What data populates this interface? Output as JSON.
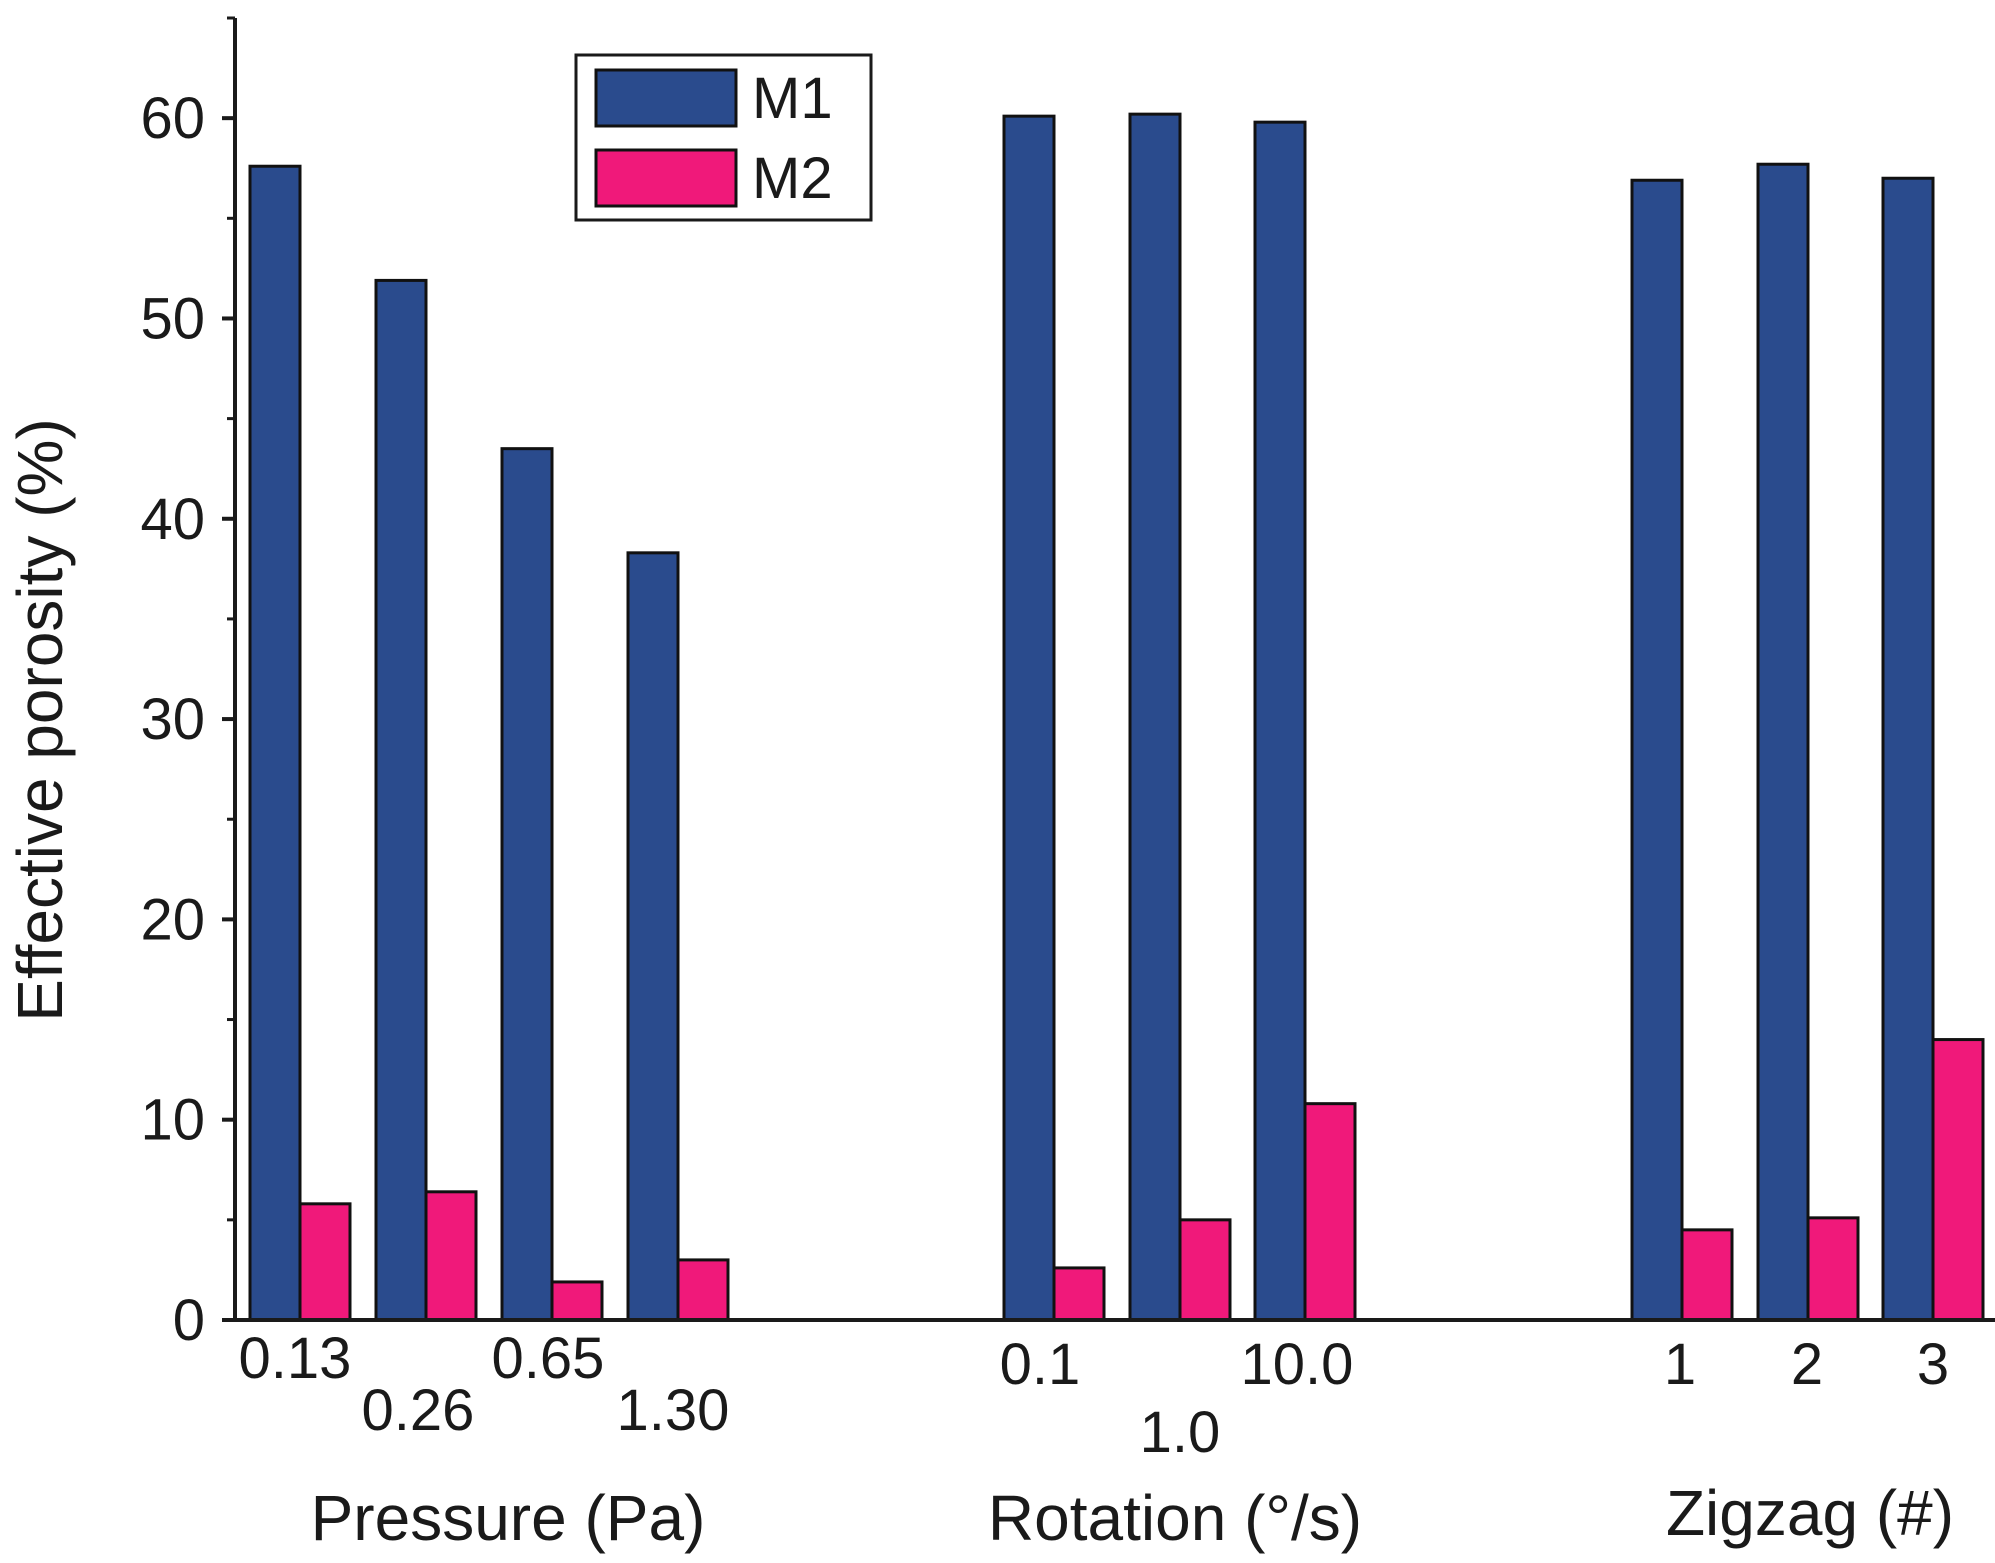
{
  "chart_data": {
    "type": "bar",
    "ylabel": "Effective porosity (%)",
    "ylim": [
      0,
      65
    ],
    "yticks": [
      "0",
      "10",
      "20",
      "30",
      "40",
      "50",
      "60"
    ],
    "legend_position": "top-left",
    "colors": {
      "M1": "#2a4b8d",
      "M2": "#f0197a"
    },
    "series": [
      {
        "name": "M1",
        "values": [
          57.6,
          51.9,
          43.5,
          38.3,
          60.1,
          60.2,
          59.8,
          56.9,
          57.7,
          57.0
        ]
      },
      {
        "name": "M2",
        "values": [
          5.8,
          6.4,
          1.9,
          3.0,
          2.6,
          5.0,
          10.8,
          4.5,
          5.1,
          14.0
        ]
      }
    ],
    "categories": [
      "0.13",
      "0.26",
      "0.65",
      "1.30",
      "0.1",
      "1.0",
      "10.0",
      "1",
      "2",
      "3"
    ],
    "groups": [
      {
        "label": "Pressure (Pa)",
        "categories": [
          "0.13",
          "0.26",
          "0.65",
          "1.30"
        ]
      },
      {
        "label": "Rotation (°/s)",
        "categories": [
          "0.1",
          "1.0",
          "10.0"
        ]
      },
      {
        "label": "Zigzag (#)",
        "categories": [
          "1",
          "2",
          "3"
        ]
      }
    ]
  }
}
